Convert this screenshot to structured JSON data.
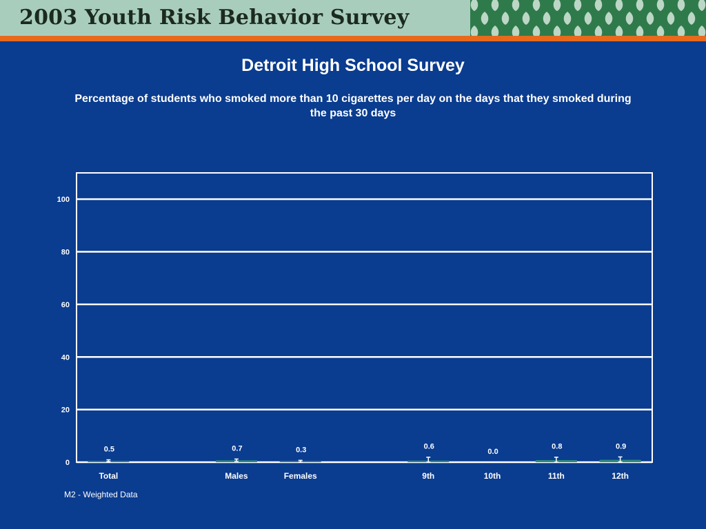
{
  "header": {
    "title": "2003 Youth Risk Behavior Survey",
    "background": "#a9cdbd",
    "accent_rule": "#e86a1c",
    "pattern_color": "#2f7a4a",
    "pattern_leaf_color": "#d5e8dc"
  },
  "slide": {
    "title": "Detroit High School Survey",
    "subtitle": "Percentage of students who smoked more than 10 cigarettes per day on the days that they smoked during the past 30 days",
    "footnote": "M2 - Weighted Data",
    "background": "#0a3c8f"
  },
  "chart_data": {
    "type": "bar",
    "title": "",
    "xlabel": "",
    "ylabel": "",
    "ylim": [
      0,
      110
    ],
    "yticks": [
      0,
      20,
      40,
      60,
      80,
      100
    ],
    "grid": true,
    "categories": [
      "Total",
      "",
      "Males",
      "Females",
      "",
      "9th",
      "10th",
      "11th",
      "12th"
    ],
    "values": [
      0.5,
      null,
      0.7,
      0.3,
      null,
      0.6,
      0.0,
      0.8,
      0.9
    ],
    "data_labels": [
      "0.5",
      "",
      "0.7",
      "0.3",
      "",
      "0.6",
      "0.0",
      "0.8",
      "0.9"
    ],
    "error_low": [
      0.2,
      null,
      0.3,
      0.0,
      null,
      0.0,
      0.0,
      0.0,
      0.1
    ],
    "error_high": [
      0.9,
      null,
      1.2,
      0.7,
      null,
      1.9,
      0.0,
      1.9,
      2.0
    ],
    "bar_color": "#2e8b7e",
    "grid_color": "#ffffff"
  }
}
